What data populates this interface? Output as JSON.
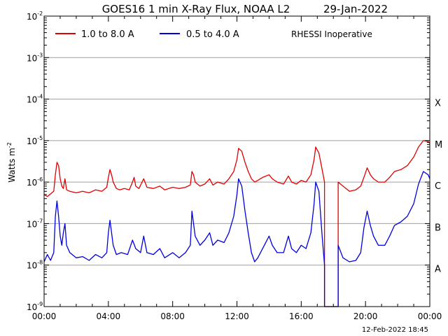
{
  "chart_data": {
    "type": "line",
    "title": "GOES16 1 min X-Ray Flux, NOAA L2",
    "date": "29-Jan-2022",
    "ylabel": "Watts m",
    "ylabel_exp": "-2",
    "yscale": "log",
    "ylim": [
      1e-09,
      0.01
    ],
    "y_ticks": [
      {
        "base": "10",
        "exp": "-2",
        "value": 0.01
      },
      {
        "base": "10",
        "exp": "-3",
        "value": 0.001
      },
      {
        "base": "10",
        "exp": "-4",
        "value": 0.0001
      },
      {
        "base": "10",
        "exp": "-5",
        "value": 1e-05
      },
      {
        "base": "10",
        "exp": "-6",
        "value": 1e-06
      },
      {
        "base": "10",
        "exp": "-7",
        "value": 1e-07
      },
      {
        "base": "10",
        "exp": "-8",
        "value": 1e-08
      },
      {
        "base": "10",
        "exp": "-9",
        "value": 1e-09
      }
    ],
    "xlim": [
      0,
      24
    ],
    "x_ticks": [
      {
        "label": "00:00",
        "hour": 0
      },
      {
        "label": "04:00",
        "hour": 4
      },
      {
        "label": "08:00",
        "hour": 8
      },
      {
        "label": "12:00",
        "hour": 12
      },
      {
        "label": "16:00",
        "hour": 16
      },
      {
        "label": "20:00",
        "hour": 20
      },
      {
        "label": "00:00",
        "hour": 24
      }
    ],
    "class_labels": [
      {
        "label": "X",
        "value": 0.0001
      },
      {
        "label": "M",
        "value": 1e-05
      },
      {
        "label": "C",
        "value": 1e-06
      },
      {
        "label": "B",
        "value": 1e-07
      },
      {
        "label": "A",
        "value": 1e-08
      }
    ],
    "grid": true,
    "annotation": "RHESSI Inoperative",
    "footer": "12-Feb-2022 18:45",
    "x_unit": "hours after 29-Jan-2022 00:00 UT",
    "series": [
      {
        "name": "1.0 to 8.0 A",
        "color": "#e00000",
        "points": [
          [
            0.0,
            5e-07
          ],
          [
            0.2,
            4.5e-07
          ],
          [
            0.4,
            5.2e-07
          ],
          [
            0.6,
            6e-07
          ],
          [
            0.7,
            1.5e-06
          ],
          [
            0.8,
            3e-06
          ],
          [
            0.9,
            2.5e-06
          ],
          [
            1.0,
            1.2e-06
          ],
          [
            1.1,
            8e-07
          ],
          [
            1.2,
            7e-07
          ],
          [
            1.3,
            1.2e-06
          ],
          [
            1.4,
            6.5e-07
          ],
          [
            1.6,
            6e-07
          ],
          [
            2.0,
            5.5e-07
          ],
          [
            2.4,
            6e-07
          ],
          [
            2.8,
            5.5e-07
          ],
          [
            3.2,
            6.5e-07
          ],
          [
            3.6,
            6e-07
          ],
          [
            3.9,
            7.5e-07
          ],
          [
            4.0,
            1.3e-06
          ],
          [
            4.1,
            2e-06
          ],
          [
            4.2,
            1.5e-06
          ],
          [
            4.3,
            1e-06
          ],
          [
            4.5,
            7e-07
          ],
          [
            4.7,
            6.5e-07
          ],
          [
            5.0,
            7e-07
          ],
          [
            5.3,
            6.5e-07
          ],
          [
            5.5,
            1e-06
          ],
          [
            5.6,
            1.3e-06
          ],
          [
            5.7,
            8e-07
          ],
          [
            5.9,
            7e-07
          ],
          [
            6.2,
            1.2e-06
          ],
          [
            6.4,
            7.5e-07
          ],
          [
            6.8,
            7e-07
          ],
          [
            7.2,
            8e-07
          ],
          [
            7.5,
            6.5e-07
          ],
          [
            8.0,
            7.5e-07
          ],
          [
            8.4,
            7e-07
          ],
          [
            8.8,
            7.5e-07
          ],
          [
            9.1,
            8.5e-07
          ],
          [
            9.2,
            1.8e-06
          ],
          [
            9.3,
            1.5e-06
          ],
          [
            9.4,
            1e-06
          ],
          [
            9.7,
            8e-07
          ],
          [
            10.0,
            9e-07
          ],
          [
            10.3,
            1.2e-06
          ],
          [
            10.5,
            8.5e-07
          ],
          [
            10.8,
            1e-06
          ],
          [
            11.2,
            9e-07
          ],
          [
            11.5,
            1.2e-06
          ],
          [
            11.8,
            1.8e-06
          ],
          [
            12.0,
            3.5e-06
          ],
          [
            12.1,
            6.5e-06
          ],
          [
            12.3,
            5.5e-06
          ],
          [
            12.5,
            3e-06
          ],
          [
            12.7,
            1.8e-06
          ],
          [
            12.9,
            1.2e-06
          ],
          [
            13.1,
            1e-06
          ],
          [
            13.3,
            1.1e-06
          ],
          [
            13.6,
            1.3e-06
          ],
          [
            14.0,
            1.5e-06
          ],
          [
            14.2,
            1.2e-06
          ],
          [
            14.5,
            1e-06
          ],
          [
            14.9,
            9e-07
          ],
          [
            15.2,
            1.4e-06
          ],
          [
            15.4,
            1e-06
          ],
          [
            15.7,
            9e-07
          ],
          [
            16.0,
            1.1e-06
          ],
          [
            16.3,
            1e-06
          ],
          [
            16.6,
            1.5e-06
          ],
          [
            16.8,
            3.5e-06
          ],
          [
            16.9,
            7e-06
          ],
          [
            17.1,
            5e-06
          ],
          [
            17.3,
            2e-06
          ],
          [
            17.45,
            1e-06
          ],
          [
            17.45,
            1e-09
          ],
          [
            18.3,
            1e-09
          ],
          [
            18.3,
            1e-06
          ],
          [
            18.6,
            8e-07
          ],
          [
            19.0,
            6e-07
          ],
          [
            19.4,
            6.5e-07
          ],
          [
            19.7,
            8e-07
          ],
          [
            19.9,
            1.3e-06
          ],
          [
            20.1,
            2.2e-06
          ],
          [
            20.3,
            1.5e-06
          ],
          [
            20.5,
            1.2e-06
          ],
          [
            20.8,
            1e-06
          ],
          [
            21.2,
            1e-06
          ],
          [
            21.5,
            1.3e-06
          ],
          [
            21.8,
            1.8e-06
          ],
          [
            22.2,
            2e-06
          ],
          [
            22.6,
            2.5e-06
          ],
          [
            23.0,
            4e-06
          ],
          [
            23.3,
            7e-06
          ],
          [
            23.6,
            1e-05
          ],
          [
            23.9,
            9.5e-06
          ],
          [
            24.0,
            8.5e-06
          ]
        ]
      },
      {
        "name": "0.5 to 4.0 A",
        "color": "#0000e0",
        "points": [
          [
            0.0,
            1.2e-08
          ],
          [
            0.2,
            1.8e-08
          ],
          [
            0.4,
            1.3e-08
          ],
          [
            0.6,
            2e-08
          ],
          [
            0.7,
            1.5e-07
          ],
          [
            0.8,
            3.5e-07
          ],
          [
            0.9,
            1.5e-07
          ],
          [
            1.0,
            5e-08
          ],
          [
            1.1,
            3e-08
          ],
          [
            1.2,
            6e-08
          ],
          [
            1.3,
            1e-07
          ],
          [
            1.4,
            3e-08
          ],
          [
            1.6,
            2e-08
          ],
          [
            2.0,
            1.5e-08
          ],
          [
            2.4,
            1.6e-08
          ],
          [
            2.8,
            1.3e-08
          ],
          [
            3.2,
            1.8e-08
          ],
          [
            3.6,
            1.5e-08
          ],
          [
            3.9,
            2e-08
          ],
          [
            4.0,
            6e-08
          ],
          [
            4.1,
            1.2e-07
          ],
          [
            4.2,
            6e-08
          ],
          [
            4.3,
            3e-08
          ],
          [
            4.5,
            1.8e-08
          ],
          [
            4.8,
            2e-08
          ],
          [
            5.2,
            1.8e-08
          ],
          [
            5.5,
            4e-08
          ],
          [
            5.7,
            2.5e-08
          ],
          [
            6.0,
            2e-08
          ],
          [
            6.2,
            5e-08
          ],
          [
            6.4,
            2e-08
          ],
          [
            6.8,
            1.8e-08
          ],
          [
            7.2,
            2.5e-08
          ],
          [
            7.5,
            1.5e-08
          ],
          [
            8.0,
            2e-08
          ],
          [
            8.4,
            1.5e-08
          ],
          [
            8.8,
            2e-08
          ],
          [
            9.1,
            3e-08
          ],
          [
            9.2,
            2e-07
          ],
          [
            9.3,
            1e-07
          ],
          [
            9.4,
            5e-08
          ],
          [
            9.7,
            3e-08
          ],
          [
            10.0,
            4e-08
          ],
          [
            10.3,
            6e-08
          ],
          [
            10.5,
            3e-08
          ],
          [
            10.8,
            4e-08
          ],
          [
            11.2,
            3.5e-08
          ],
          [
            11.5,
            6e-08
          ],
          [
            11.8,
            1.5e-07
          ],
          [
            12.0,
            5e-07
          ],
          [
            12.1,
            1.2e-06
          ],
          [
            12.3,
            8e-07
          ],
          [
            12.5,
            2e-07
          ],
          [
            12.7,
            6e-08
          ],
          [
            12.9,
            2e-08
          ],
          [
            13.1,
            1.2e-08
          ],
          [
            13.3,
            1.5e-08
          ],
          [
            13.6,
            2.5e-08
          ],
          [
            14.0,
            5e-08
          ],
          [
            14.2,
            3e-08
          ],
          [
            14.5,
            2e-08
          ],
          [
            14.9,
            2e-08
          ],
          [
            15.2,
            5e-08
          ],
          [
            15.4,
            2.5e-08
          ],
          [
            15.7,
            2e-08
          ],
          [
            16.0,
            3e-08
          ],
          [
            16.3,
            2.5e-08
          ],
          [
            16.6,
            6e-08
          ],
          [
            16.8,
            3e-07
          ],
          [
            16.9,
            1e-06
          ],
          [
            17.1,
            6e-07
          ],
          [
            17.3,
            5e-08
          ],
          [
            17.45,
            1e-08
          ],
          [
            17.45,
            1e-09
          ],
          [
            18.3,
            1e-09
          ],
          [
            18.3,
            3e-08
          ],
          [
            18.6,
            1.5e-08
          ],
          [
            19.0,
            1.2e-08
          ],
          [
            19.4,
            1.3e-08
          ],
          [
            19.7,
            2e-08
          ],
          [
            19.9,
            8e-08
          ],
          [
            20.1,
            2e-07
          ],
          [
            20.3,
            9e-08
          ],
          [
            20.5,
            5e-08
          ],
          [
            20.8,
            3e-08
          ],
          [
            21.2,
            3e-08
          ],
          [
            21.5,
            5e-08
          ],
          [
            21.8,
            9e-08
          ],
          [
            22.2,
            1.1e-07
          ],
          [
            22.6,
            1.5e-07
          ],
          [
            23.0,
            3e-07
          ],
          [
            23.3,
            9e-07
          ],
          [
            23.6,
            1.8e-06
          ],
          [
            23.9,
            1.5e-06
          ],
          [
            24.0,
            1.2e-06
          ]
        ]
      }
    ]
  }
}
